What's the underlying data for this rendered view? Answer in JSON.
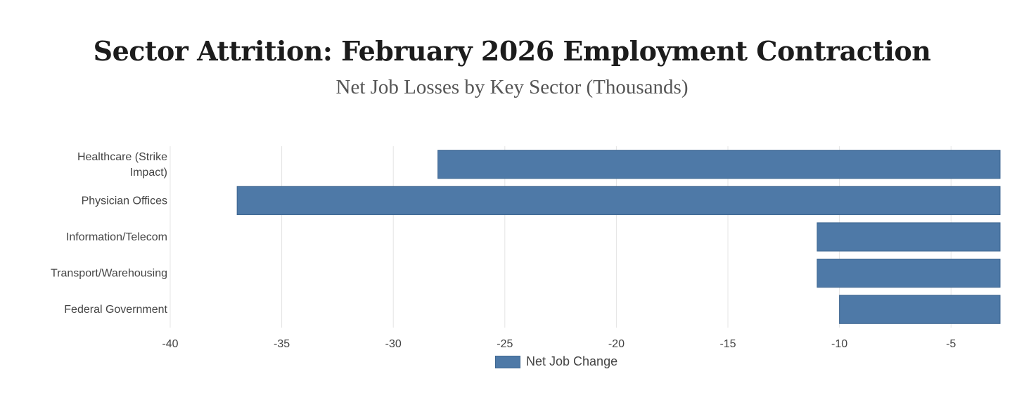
{
  "chart_data": {
    "type": "bar",
    "orientation": "horizontal",
    "title": "Sector Attrition: February 2026 Employment Contraction",
    "subtitle": "Net Job Losses by Key Sector (Thousands)",
    "categories": [
      [
        "Healthcare (Strike",
        "Impact)"
      ],
      [
        "Physician Offices"
      ],
      [
        "Information/Telecom"
      ],
      [
        "Transport/Warehousing"
      ],
      [
        "Federal Government"
      ]
    ],
    "series": [
      {
        "name": "Net Job Change",
        "values": [
          -28,
          -37,
          -11,
          -11,
          -10
        ],
        "color": "#4e79a7"
      }
    ],
    "x_ticks": [
      "-40",
      "-35",
      "-30",
      "-25",
      "-20",
      "-15",
      "-10",
      "-5"
    ],
    "xlim": [
      -40,
      -2.8
    ],
    "grid": true,
    "legend_position": "bottom-center"
  }
}
